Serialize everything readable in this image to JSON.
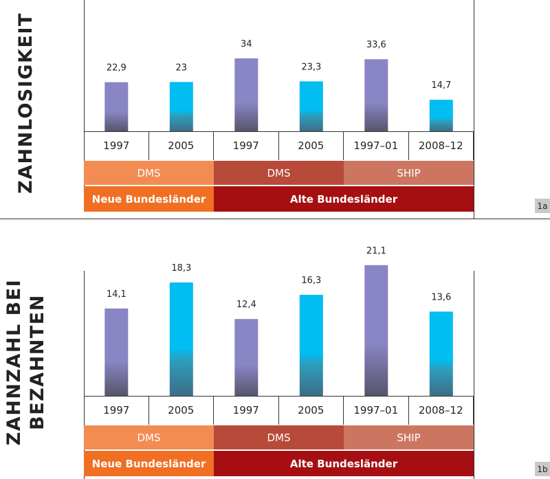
{
  "colors": {
    "purple_bar": "#8a85c4",
    "cyan_bar": "#00bdf2",
    "source_new_dms": "#f28c53",
    "source_old_dms": "#b84a39",
    "source_ship": "#cc7661",
    "region_new": "#f06f22",
    "region_old": "#a50f12"
  },
  "tables": {
    "years": [
      "1997",
      "2005",
      "1997",
      "2005",
      "1997–01",
      "2008–12"
    ],
    "sources": [
      "DMS",
      "DMS",
      "SHIP"
    ],
    "regions": [
      "Neue Bundesländer",
      "Alte Bundesländer"
    ]
  },
  "chart_data": [
    {
      "type": "bar",
      "title": "ZAHNLOSIGKEIT",
      "tag": "1a",
      "categories": [
        "1997",
        "2005",
        "1997",
        "2005",
        "1997–01",
        "2008–12"
      ],
      "values": [
        22.9,
        23,
        34,
        23.3,
        33.6,
        14.7
      ],
      "value_labels": [
        "22,9",
        "23",
        "34",
        "23,3",
        "33,6",
        "14,7"
      ],
      "bar_colors": [
        "purple",
        "cyan",
        "purple",
        "cyan",
        "purple",
        "cyan"
      ],
      "ylim": [
        0,
        40
      ]
    },
    {
      "type": "bar",
      "title_lines": [
        "ZAHNZAHL BEI",
        "BEZAHNTEN"
      ],
      "tag": "1b",
      "categories": [
        "1997",
        "2005",
        "1997",
        "2005",
        "1997–01",
        "2008–12"
      ],
      "values": [
        14.1,
        18.3,
        12.4,
        16.3,
        21.1,
        13.6
      ],
      "value_labels": [
        "14,1",
        "18,3",
        "12,4",
        "16,3",
        "21,1",
        "13,6"
      ],
      "bar_colors": [
        "purple",
        "cyan",
        "purple",
        "cyan",
        "purple",
        "cyan"
      ],
      "ylim": [
        0,
        21.5
      ]
    }
  ]
}
